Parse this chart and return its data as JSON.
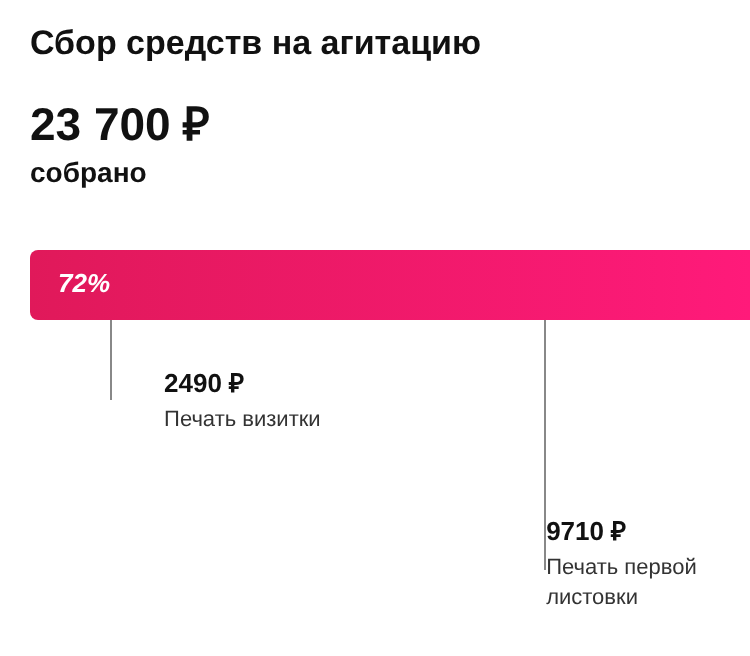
{
  "chart_data": {
    "type": "other",
    "title": "Сбор средств на агитацию",
    "subtitle": "собрано",
    "annotations": [
      "23 700 ₽",
      "72%"
    ],
    "categories": [
      "Печать визитки",
      "Печать первой листовки"
    ],
    "values": [
      2490,
      9710
    ],
    "value_labels": [
      "2490 ₽",
      "9710 ₽"
    ],
    "colors": [
      "#e0195a",
      "#ff1a7a"
    ]
  }
}
